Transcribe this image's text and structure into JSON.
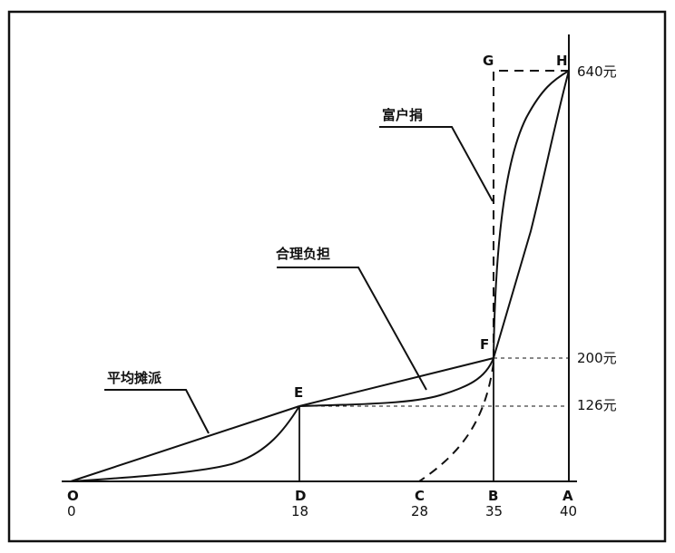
{
  "labels": {
    "O_letter": "O",
    "O_value": "0",
    "D_letter": "D",
    "D_value": "18",
    "C_letter": "C",
    "C_value": "28",
    "B_letter": "B",
    "B_value": "35",
    "A_letter": "A",
    "A_value": "40",
    "E": "E",
    "F": "F",
    "G": "G",
    "H": "H",
    "y640": "640元",
    "y200": "200元",
    "y126": "126元",
    "callout_equal": "平均摊派",
    "callout_fair": "合理负担",
    "callout_rich": "富户捐"
  },
  "chart_data": {
    "type": "line",
    "x_ticks": [
      0,
      18,
      28,
      35,
      40
    ],
    "y_ticks": [
      126,
      200,
      640
    ],
    "points": {
      "O": [
        0,
        0
      ],
      "E": [
        18,
        126
      ],
      "F": [
        35,
        200
      ],
      "H": [
        40,
        640
      ]
    },
    "annotations": [
      "平均摊派",
      "合理负担",
      "富户捐"
    ]
  }
}
